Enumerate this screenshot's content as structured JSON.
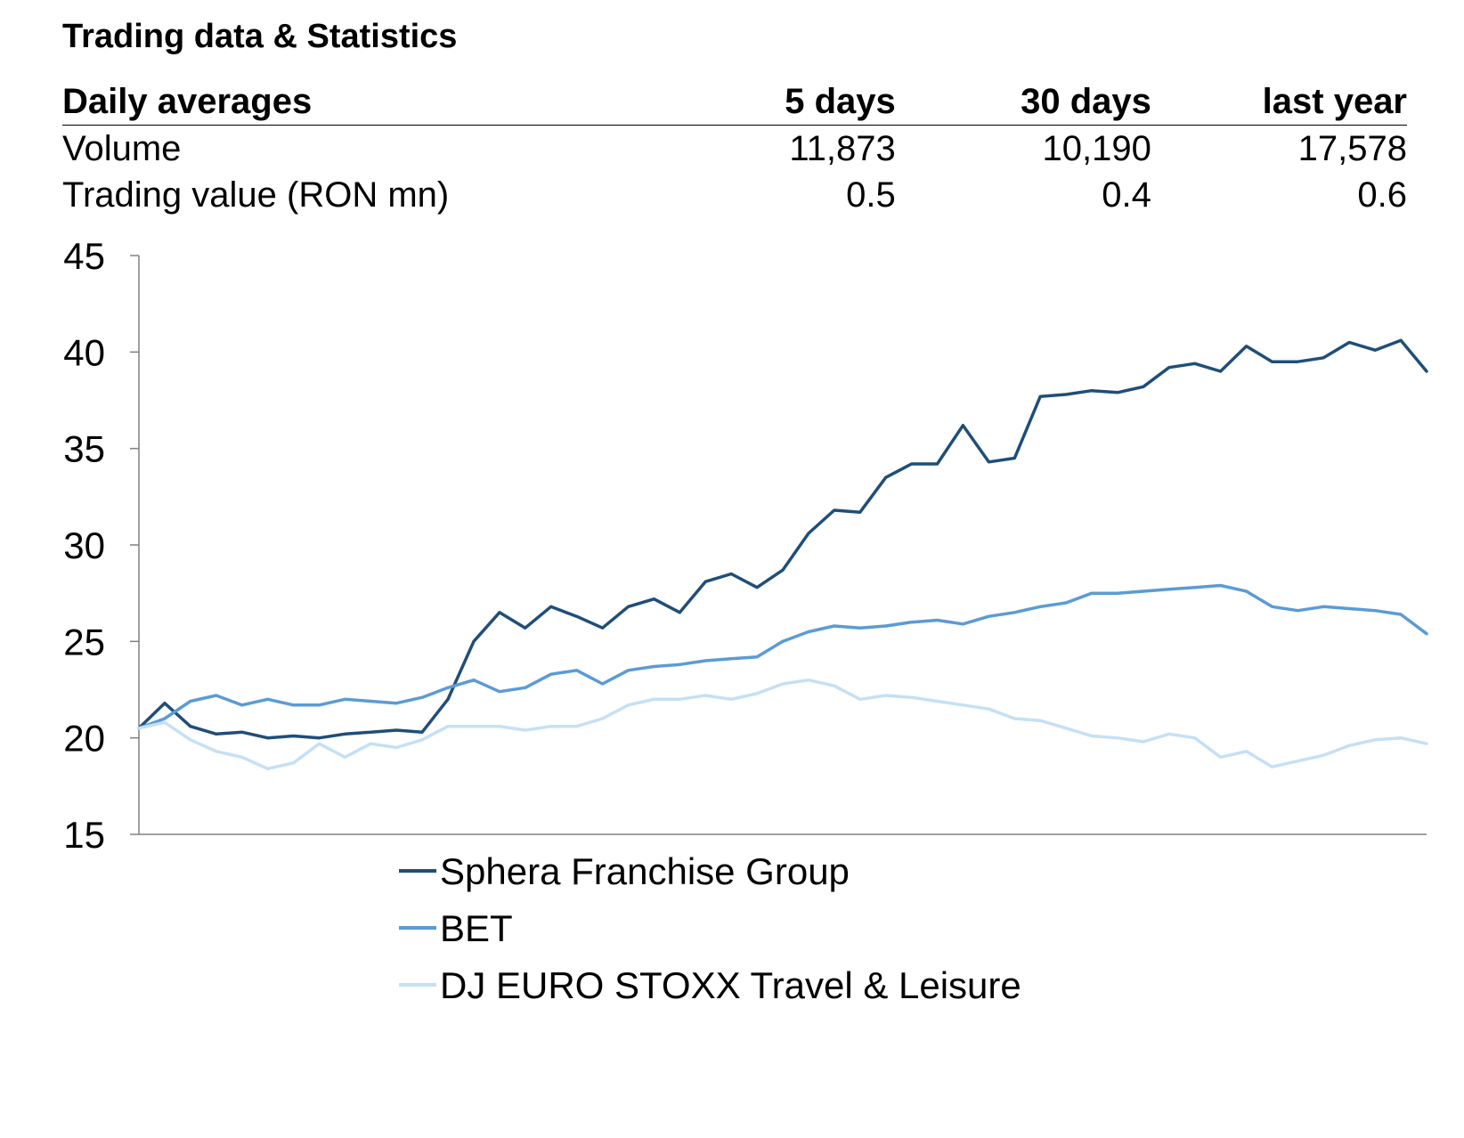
{
  "header": {
    "title": "Trading data & Statistics"
  },
  "stats_table": {
    "columns": [
      "Daily averages",
      "5 days",
      "30 days",
      "last year"
    ],
    "rows": [
      {
        "label": "Volume",
        "values": [
          "11,873",
          "10,190",
          "17,578"
        ]
      },
      {
        "label": "Trading value (RON mn)",
        "values": [
          "0.5",
          "0.4",
          "0.6"
        ]
      }
    ]
  },
  "chart_data": {
    "type": "line",
    "title": "",
    "xlabel": "",
    "ylabel": "",
    "ylim": [
      15,
      45
    ],
    "yticks": [
      45,
      40,
      35,
      30,
      25,
      20,
      15
    ],
    "x_axis_labels": false,
    "grid": false,
    "legend_position": "bottom",
    "x": [
      0,
      5,
      10,
      15,
      20,
      25,
      30,
      35,
      40,
      45,
      50,
      55,
      60,
      65,
      70,
      75,
      80,
      85,
      90,
      95,
      100,
      105,
      110,
      115,
      120,
      125,
      130,
      135,
      140,
      145,
      150,
      155,
      160,
      165,
      170,
      175,
      180,
      185,
      190,
      195,
      200,
      205,
      210,
      215,
      220,
      225,
      230,
      235,
      240,
      245,
      250
    ],
    "series": [
      {
        "name": "Sphera Franchise Group",
        "color": "#1f4e79",
        "values": [
          20.5,
          21.8,
          20.6,
          20.2,
          20.3,
          20.0,
          20.1,
          20.0,
          20.2,
          20.3,
          20.4,
          20.3,
          22.0,
          25.0,
          26.5,
          25.7,
          26.8,
          26.3,
          25.7,
          26.8,
          27.2,
          26.5,
          28.1,
          28.5,
          27.8,
          28.7,
          30.6,
          31.8,
          31.7,
          33.5,
          34.2,
          34.2,
          36.2,
          34.3,
          34.5,
          37.7,
          37.8,
          38.0,
          37.9,
          38.2,
          39.2,
          39.4,
          39.0,
          40.3,
          39.5,
          39.5,
          39.7,
          40.5,
          40.1,
          40.6,
          39.0
        ]
      },
      {
        "name": "BET",
        "color": "#5b9bd5",
        "values": [
          20.5,
          21.0,
          21.9,
          22.2,
          21.7,
          22.0,
          21.7,
          21.7,
          22.0,
          21.9,
          21.8,
          22.1,
          22.6,
          23.0,
          22.4,
          22.6,
          23.3,
          23.5,
          22.8,
          23.5,
          23.7,
          23.8,
          24.0,
          24.1,
          24.2,
          25.0,
          25.5,
          25.8,
          25.7,
          25.8,
          26.0,
          26.1,
          25.9,
          26.3,
          26.5,
          26.8,
          27.0,
          27.5,
          27.5,
          27.6,
          27.7,
          27.8,
          27.9,
          27.6,
          26.8,
          26.6,
          26.8,
          26.7,
          26.6,
          26.4,
          25.4
        ]
      },
      {
        "name": "DJ EURO STOXX Travel & Leisure",
        "color": "#c5e0f5",
        "values": [
          20.5,
          20.8,
          19.9,
          19.3,
          19.0,
          18.4,
          18.7,
          19.7,
          19.0,
          19.7,
          19.5,
          19.9,
          20.6,
          20.6,
          20.6,
          20.4,
          20.6,
          20.6,
          21.0,
          21.7,
          22.0,
          22.0,
          22.2,
          22.0,
          22.3,
          22.8,
          23.0,
          22.7,
          22.0,
          22.2,
          22.1,
          21.9,
          21.7,
          21.5,
          21.0,
          20.9,
          20.5,
          20.1,
          20.0,
          19.8,
          20.2,
          20.0,
          19.0,
          19.3,
          18.5,
          18.8,
          19.1,
          19.6,
          19.9,
          20.0,
          19.7
        ]
      }
    ]
  }
}
